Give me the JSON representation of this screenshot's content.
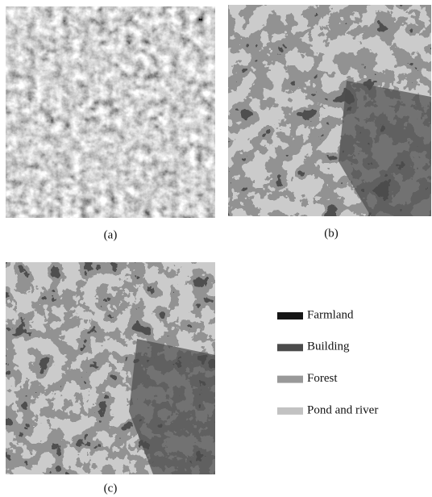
{
  "panels": [
    {
      "caption": "(a)"
    },
    {
      "caption": "(b)"
    },
    {
      "caption": "(c)"
    }
  ],
  "legend": [
    {
      "label": "Farmland",
      "color": "#161616"
    },
    {
      "label": "Building",
      "color": "#4b4b4b"
    },
    {
      "label": "Forest",
      "color": "#999999"
    },
    {
      "label": "Pond and river",
      "color": "#c2c2c2"
    }
  ]
}
